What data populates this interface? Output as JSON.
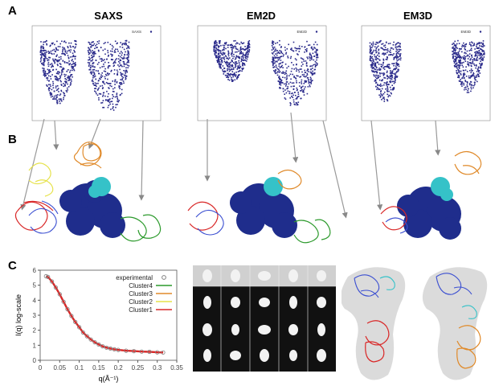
{
  "panels": {
    "a": "A",
    "b": "B",
    "c": "C"
  },
  "column_titles": [
    "SAXS",
    "EM2D",
    "EM3D"
  ],
  "scatter_legends": [
    "SAXS",
    "EM2D",
    "EM3D"
  ],
  "colors": {
    "scatter_points": "#2a2a8a",
    "core_domain": "#1f2d8c",
    "cyan_domain": "#35c2c8",
    "orange_domain": "#e08a2a",
    "red_domain": "#d92828",
    "blue_domain": "#3b4fd1",
    "green_domain": "#2c9a2c",
    "yellow_domain": "#e6e24a",
    "gray_envelope": "#bdbdbd"
  },
  "chart_data": {
    "type": "line",
    "xlabel": "q(Å⁻¹)",
    "ylabel": "I(q) log-scale",
    "xlim": [
      0,
      0.35
    ],
    "ylim": [
      0,
      6
    ],
    "x_ticks": [
      "0",
      "0.05",
      "0.1",
      "0.15",
      "0.2",
      "0.25",
      "0.3",
      "0.35"
    ],
    "y_ticks": [
      "0",
      "1",
      "2",
      "3",
      "4",
      "5",
      "6"
    ],
    "legend_position": "top-right",
    "series": [
      {
        "name": "experimental",
        "color": "#808080",
        "x": [
          0.015,
          0.02,
          0.03,
          0.04,
          0.05,
          0.06,
          0.07,
          0.08,
          0.09,
          0.1,
          0.11,
          0.12,
          0.13,
          0.14,
          0.15,
          0.16,
          0.17,
          0.18,
          0.19,
          0.2,
          0.22,
          0.24,
          0.26,
          0.28,
          0.3,
          0.315
        ],
        "y": [
          5.6,
          5.55,
          5.25,
          4.85,
          4.4,
          3.9,
          3.4,
          2.95,
          2.55,
          2.2,
          1.85,
          1.6,
          1.38,
          1.2,
          1.05,
          0.93,
          0.84,
          0.78,
          0.73,
          0.69,
          0.64,
          0.61,
          0.58,
          0.56,
          0.53,
          0.52
        ]
      },
      {
        "name": "Cluster4",
        "color": "#2c9a2c"
      },
      {
        "name": "Cluster3",
        "color": "#e08a2a"
      },
      {
        "name": "Cluster2",
        "color": "#e6e24a"
      },
      {
        "name": "Cluster1",
        "color": "#d92828"
      }
    ]
  }
}
